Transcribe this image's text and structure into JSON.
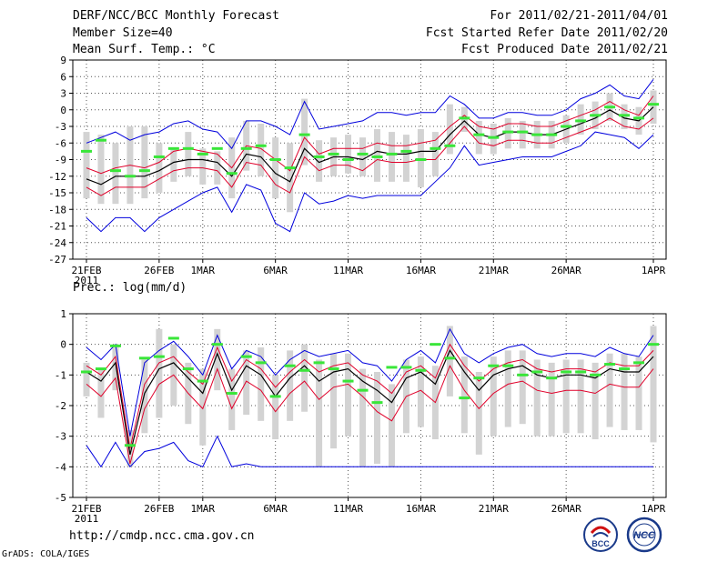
{
  "header": {
    "title": "DERF/NCC/BCC Monthly Forecast",
    "member_size": "Member Size=40",
    "variable": "Mean Surf. Temp.: °C",
    "period": "For 2011/02/21-2011/04/01",
    "refer_date": "Fcst Started Refer Date 2011/02/20",
    "produced_date": "Fcst Produced Date 2011/02/21"
  },
  "footer": {
    "url": "http://cmdp.ncc.cma.gov.cn",
    "grads": "GrADS: COLA/IGES"
  },
  "logos": {
    "bcc_text": "BCC",
    "ncc_text": "NCC"
  },
  "colors": {
    "band": "#d3d3d3",
    "mean": "#000000",
    "inner": "#e0002a",
    "outer": "#0000dd",
    "obs": "#39e639",
    "grid": "#555555"
  },
  "chart_data": [
    {
      "type": "line",
      "title": "Mean Surf. Temp.: °C",
      "x_ticks": [
        "21FEB",
        "26FEB",
        "1MAR",
        "6MAR",
        "11MAR",
        "16MAR",
        "21MAR",
        "26MAR",
        "1APR"
      ],
      "x_tick_days": [
        0,
        5,
        8,
        13,
        18,
        23,
        28,
        33,
        39
      ],
      "x_sublabel": "2011",
      "y_ticks": [
        "9",
        "6",
        "3",
        "0",
        "-3",
        "-6",
        "-9",
        "-12",
        "-15",
        "-18",
        "-21",
        "-24",
        "-27"
      ],
      "ylim": [
        -27,
        9
      ],
      "days": 40,
      "mean": [
        -12.5,
        -13.5,
        -12,
        -12,
        -12,
        -11,
        -9.5,
        -9,
        -9,
        -9.5,
        -12,
        -8,
        -8.5,
        -11.5,
        -13,
        -7,
        -9.5,
        -8.5,
        -8.5,
        -9,
        -7.5,
        -8,
        -8,
        -7.5,
        -7.5,
        -4.5,
        -2,
        -4.5,
        -5,
        -4,
        -4,
        -4.5,
        -4.5,
        -3.5,
        -2.5,
        -1.5,
        0,
        -1.5,
        -2,
        0.5
      ],
      "inner_upper": [
        -10.5,
        -11.5,
        -10.5,
        -10,
        -10.5,
        -9.5,
        -7.5,
        -7,
        -7.5,
        -8,
        -10.5,
        -6.5,
        -7,
        -9,
        -11,
        -5,
        -8,
        -7,
        -7,
        -7,
        -6,
        -6.5,
        -6.5,
        -6,
        -5.5,
        -3,
        -1,
        -3,
        -3.5,
        -2.5,
        -2.5,
        -3,
        -3,
        -2,
        -1,
        0,
        1.5,
        0,
        -1,
        2.5
      ],
      "inner_lower": [
        -14,
        -15.5,
        -14,
        -14,
        -14,
        -12.5,
        -11,
        -10.5,
        -10.5,
        -11,
        -14,
        -9.5,
        -10,
        -13.5,
        -15,
        -8.5,
        -11,
        -10,
        -10,
        -11,
        -9,
        -9.5,
        -9.5,
        -9,
        -9,
        -6,
        -3,
        -6,
        -6.5,
        -5.5,
        -5.5,
        -6,
        -6,
        -5,
        -4,
        -3,
        -1.5,
        -3,
        -3.5,
        -1.5
      ],
      "outer_upper": [
        -6,
        -5,
        -4,
        -5.5,
        -4.5,
        -4,
        -2.5,
        -2,
        -3.5,
        -4,
        -7,
        -2,
        -2,
        -3,
        -4.5,
        1.5,
        -3.5,
        -3,
        -2.5,
        -2,
        -0.5,
        -0.5,
        -1,
        -0.5,
        -0.5,
        2.5,
        1,
        -1.5,
        -1.5,
        -0.5,
        -0.5,
        -1,
        -1,
        0,
        2,
        3,
        4.5,
        2.5,
        2,
        5.5
      ],
      "outer_lower": [
        -19.5,
        -22,
        -19.5,
        -19.5,
        -22,
        -19.5,
        -18,
        -16.5,
        -15,
        -14,
        -18.5,
        -13.5,
        -14.5,
        -20.5,
        -22,
        -15,
        -17,
        -16.5,
        -15.5,
        -16,
        -15.5,
        -15.5,
        -15.5,
        -15.5,
        -13,
        -10.5,
        -6.5,
        -10,
        -9.5,
        -9,
        -8.5,
        -8.5,
        -8.5,
        -7.5,
        -6.5,
        -4,
        -4.5,
        -5,
        -7,
        -4.5
      ],
      "band_upper": [
        -4,
        -4.5,
        -6,
        -3,
        -3,
        -6,
        -7,
        -4,
        -7,
        -7.5,
        -5,
        -2,
        -2.5,
        -5,
        -6,
        2,
        -5.5,
        -5,
        -4.5,
        -5,
        -3.5,
        -4,
        -4.5,
        -3.5,
        -4,
        1,
        0.5,
        -2,
        -2.5,
        -1.5,
        -2,
        -2,
        -2,
        -1,
        1,
        1.5,
        3,
        1,
        0.5,
        3.5
      ],
      "band_lower": [
        -16,
        -17,
        -17,
        -17,
        -16,
        -15,
        -13,
        -12,
        -13.5,
        -13.5,
        -16,
        -11,
        -12,
        -16,
        -18.5,
        -10,
        -13,
        -12,
        -11.5,
        -12,
        -13,
        -13,
        -13,
        -14,
        -12,
        -8,
        -4,
        -8,
        -8,
        -7,
        -7,
        -7,
        -7,
        -6,
        -4.5,
        -3.5,
        -2,
        -3.5,
        -4.5,
        -2.5
      ],
      "observed": [
        -7.5,
        -5.5,
        -11,
        -12,
        -11,
        -8.5,
        -7,
        -7,
        -8,
        -7,
        -11.5,
        -7,
        -6.5,
        -9,
        -10.5,
        -4.5,
        -8.5,
        -8,
        -9,
        -8,
        -8.5,
        -8,
        -7.5,
        -9,
        -7,
        -6.5,
        -1.5,
        -4.5,
        -5,
        -4,
        -4,
        -4.5,
        -4.5,
        -3,
        -2,
        -1,
        0.5,
        -1,
        -1.5,
        1
      ]
    },
    {
      "type": "line",
      "title": "Prec.: log(mm/d)",
      "x_ticks": [
        "21FEB",
        "26FEB",
        "1MAR",
        "6MAR",
        "11MAR",
        "16MAR",
        "21MAR",
        "26MAR",
        "1APR"
      ],
      "x_tick_days": [
        0,
        5,
        8,
        13,
        18,
        23,
        28,
        33,
        39
      ],
      "x_sublabel": "2011",
      "y_ticks": [
        "1",
        "0",
        "-1",
        "-2",
        "-3",
        "-4",
        "-5"
      ],
      "ylim": [
        -5,
        1
      ],
      "days": 40,
      "mean": [
        -0.9,
        -1.2,
        -0.6,
        -3.6,
        -1.6,
        -0.8,
        -0.6,
        -1.1,
        -1.6,
        -0.3,
        -1.5,
        -0.7,
        -1.0,
        -1.7,
        -1.1,
        -0.7,
        -1.2,
        -0.9,
        -0.8,
        -1.2,
        -1.5,
        -1.9,
        -1.1,
        -0.9,
        -1.3,
        -0.2,
        -0.9,
        -1.5,
        -1.0,
        -0.8,
        -0.7,
        -1.0,
        -1.1,
        -1.0,
        -1.0,
        -1.1,
        -0.8,
        -0.9,
        -0.9,
        -0.4
      ],
      "inner_upper": [
        -0.7,
        -1.0,
        -0.4,
        -3.4,
        -1.3,
        -0.6,
        -0.4,
        -0.9,
        -1.3,
        -0.1,
        -1.2,
        -0.5,
        -0.8,
        -1.4,
        -0.9,
        -0.5,
        -0.9,
        -0.7,
        -0.6,
        -1.0,
        -1.2,
        -1.6,
        -0.9,
        -0.7,
        -1.1,
        0.0,
        -0.7,
        -1.2,
        -0.8,
        -0.6,
        -0.5,
        -0.8,
        -0.9,
        -0.8,
        -0.8,
        -0.9,
        -0.6,
        -0.7,
        -0.7,
        -0.2
      ],
      "inner_lower": [
        -1.3,
        -1.7,
        -1.1,
        -3.9,
        -2.1,
        -1.3,
        -1.0,
        -1.6,
        -2.1,
        -0.8,
        -2.1,
        -1.2,
        -1.5,
        -2.2,
        -1.6,
        -1.2,
        -1.8,
        -1.4,
        -1.3,
        -1.7,
        -2.2,
        -2.5,
        -1.7,
        -1.5,
        -1.9,
        -0.7,
        -1.5,
        -2.1,
        -1.6,
        -1.3,
        -1.2,
        -1.5,
        -1.6,
        -1.5,
        -1.5,
        -1.6,
        -1.3,
        -1.4,
        -1.4,
        -0.8
      ],
      "outer_upper": [
        -0.1,
        -0.5,
        0.0,
        -3.0,
        -0.6,
        -0.2,
        0.1,
        -0.4,
        -1.0,
        0.3,
        -0.8,
        -0.2,
        -0.4,
        -1.0,
        -0.5,
        -0.2,
        -0.4,
        -0.3,
        -0.2,
        -0.6,
        -0.7,
        -1.2,
        -0.5,
        -0.2,
        -0.6,
        0.5,
        -0.3,
        -0.6,
        -0.3,
        -0.1,
        0.0,
        -0.3,
        -0.4,
        -0.3,
        -0.3,
        -0.4,
        -0.1,
        -0.3,
        -0.4,
        0.3
      ],
      "outer_lower": [
        -3.3,
        -4.0,
        -3.2,
        -4.0,
        -3.5,
        -3.4,
        -3.2,
        -3.8,
        -4.0,
        -3.0,
        -4.0,
        -3.9,
        -4.0,
        -4.0,
        -4.0,
        -4.0,
        -4.0,
        -4.0,
        -4.0,
        -4.0,
        -4.0,
        -4.0,
        -4.0,
        -4.0,
        -4.0,
        -4.0,
        -4.0,
        -4.0,
        -4.0,
        -4.0,
        -4.0,
        -4.0,
        -4.0,
        -4.0,
        -4.0,
        -4.0,
        -4.0,
        -4.0,
        -4.0,
        -4.0
      ],
      "band_upper": [
        -0.6,
        -0.8,
        0.0,
        -2.8,
        -0.5,
        0.5,
        0.0,
        -0.6,
        -0.8,
        0.5,
        -0.8,
        -0.2,
        -0.1,
        -1.0,
        -0.2,
        0.0,
        -0.5,
        -0.3,
        -0.3,
        -0.8,
        -0.9,
        -1.3,
        -0.5,
        -0.4,
        -0.7,
        0.6,
        -0.4,
        -0.9,
        -0.4,
        -0.2,
        -0.2,
        -0.5,
        -0.6,
        -0.5,
        -0.5,
        -0.6,
        -0.3,
        -0.3,
        -0.4,
        0.6
      ],
      "band_lower": [
        -1.7,
        -2.4,
        -1.5,
        -4.0,
        -2.9,
        -2.4,
        -2.0,
        -2.6,
        -3.3,
        -1.5,
        -2.8,
        -2.3,
        -2.5,
        -3.1,
        -2.5,
        -2.2,
        -4.0,
        -3.4,
        -3.0,
        -4.0,
        -3.9,
        -4.0,
        -2.9,
        -2.7,
        -3.1,
        -1.7,
        -2.9,
        -3.6,
        -3.0,
        -2.7,
        -2.6,
        -3.0,
        -3.0,
        -2.9,
        -2.9,
        -3.1,
        -2.7,
        -2.8,
        -2.8,
        -3.2
      ],
      "observed": [
        -0.9,
        -0.8,
        -0.05,
        -3.3,
        -0.45,
        -0.4,
        0.2,
        -0.8,
        -1.2,
        0.0,
        -1.6,
        -0.4,
        -0.6,
        -1.7,
        -0.7,
        -0.85,
        -0.6,
        -0.8,
        -1.2,
        -1.5,
        -1.9,
        -0.75,
        -0.75,
        -0.85,
        0.0,
        -0.45,
        -1.75,
        -1.1,
        -0.7,
        -0.7,
        -1.0,
        -0.9,
        -1.1,
        -0.9,
        -0.9,
        -1.0,
        -0.65,
        -0.8,
        -0.6,
        0.0
      ]
    }
  ]
}
